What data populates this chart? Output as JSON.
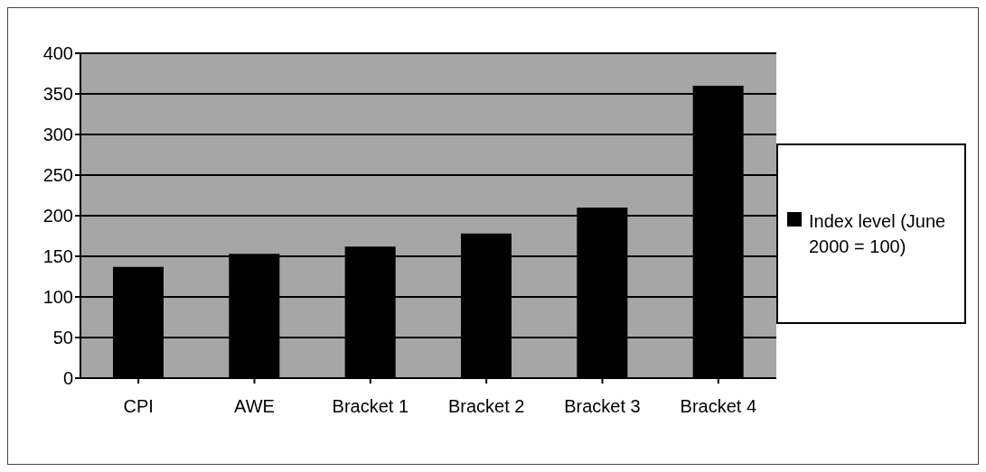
{
  "chart_data": {
    "type": "bar",
    "categories": [
      "CPI",
      "AWE",
      "Bracket 1",
      "Bracket 2",
      "Bracket 3",
      "Bracket 4"
    ],
    "series": [
      {
        "name": "Index level (June 2000 = 100)",
        "color": "#000000",
        "values": [
          137,
          153,
          162,
          178,
          210,
          360
        ]
      }
    ],
    "ylim": [
      0,
      400
    ],
    "yticks": [
      0,
      50,
      100,
      150,
      200,
      250,
      300,
      350,
      400
    ],
    "grid": "y",
    "legend": "right"
  }
}
